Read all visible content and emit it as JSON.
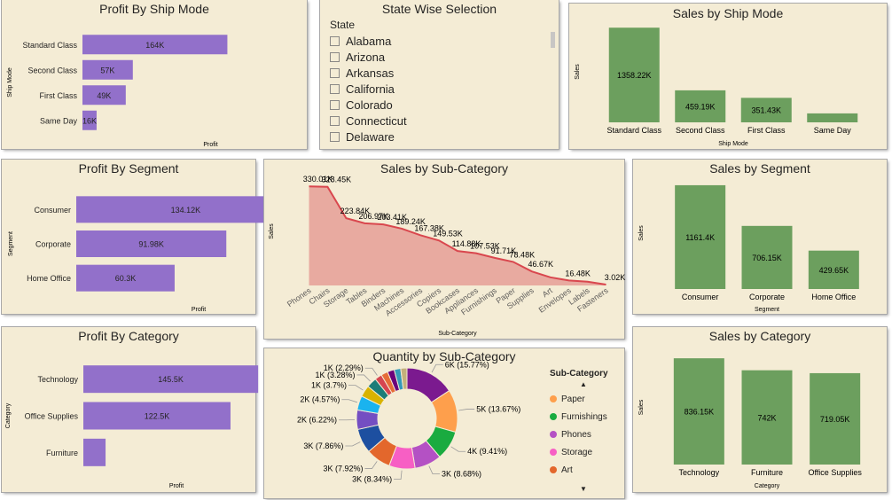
{
  "colors": {
    "profit_bar": "#9270ca",
    "sales_bar": "#6c9f5e",
    "area_fill": "#e8aaa0",
    "area_line": "#d9474e",
    "card_bg": "#f4ecd5"
  },
  "profit_ship": {
    "title": "Profit By Ship Mode",
    "xlabel": "Profit",
    "ylabel": "Ship Mode"
  },
  "state_slicer": {
    "title": "State Wise Selection",
    "header": "State",
    "states": [
      "Alabama",
      "Arizona",
      "Arkansas",
      "California",
      "Colorado",
      "Connecticut",
      "Delaware"
    ]
  },
  "sales_ship": {
    "title": "Sales by Ship Mode",
    "xlabel": "Ship Mode",
    "ylabel": "Sales"
  },
  "profit_segment": {
    "title": "Profit By Segment",
    "xlabel": "Profit",
    "ylabel": "Segment"
  },
  "sales_subcat": {
    "title": "Sales by Sub-Category",
    "xlabel": "Sub-Category",
    "ylabel": "Sales"
  },
  "sales_segment": {
    "title": "Sales by Segment",
    "xlabel": "Segment",
    "ylabel": "Sales"
  },
  "profit_category": {
    "title": "Profit By Category",
    "xlabel": "Profit",
    "ylabel": "Category"
  },
  "quantity_subcat": {
    "title": "Quantity by Sub-Category",
    "legend_title": "Sub-Category",
    "legend_items": [
      {
        "name": "Paper",
        "color": "#fe9f4c"
      },
      {
        "name": "Furnishings",
        "color": "#1aab40"
      },
      {
        "name": "Phones",
        "color": "#b451c4"
      },
      {
        "name": "Storage",
        "color": "#f75fc4"
      },
      {
        "name": "Art",
        "color": "#e3672c"
      }
    ]
  },
  "sales_category": {
    "title": "Sales by Category",
    "xlabel": "Category",
    "ylabel": "Sales"
  },
  "chart_data": [
    {
      "id": "profit_ship",
      "type": "bar",
      "orientation": "horizontal",
      "categories": [
        "Standard Class",
        "Second Class",
        "First Class",
        "Same Day"
      ],
      "values": [
        164,
        57,
        49,
        16
      ],
      "labels": [
        "164K",
        "57K",
        "49K",
        "16K"
      ],
      "xlim": [
        0,
        290
      ]
    },
    {
      "id": "sales_ship",
      "type": "bar",
      "categories": [
        "Standard Class",
        "Second Class",
        "First Class",
        "Same Day"
      ],
      "values": [
        1358.22,
        459.19,
        351.43,
        128.36
      ],
      "labels": [
        "1358.22K",
        "459.19K",
        "351.43K",
        ""
      ],
      "ylim": [
        0,
        1450
      ]
    },
    {
      "id": "profit_segment",
      "type": "bar",
      "orientation": "horizontal",
      "categories": [
        "Consumer",
        "Corporate",
        "Home Office"
      ],
      "values": [
        134.12,
        91.98,
        60.3
      ],
      "labels": [
        "134.12K",
        "91.98K",
        "60.3K"
      ],
      "xlim": [
        0,
        150
      ]
    },
    {
      "id": "sales_subcat",
      "type": "area",
      "categories": [
        "Phones",
        "Chairs",
        "Storage",
        "Tables",
        "Binders",
        "Machines",
        "Accessories",
        "Copiers",
        "Bookcases",
        "Appliances",
        "Furnishings",
        "Paper",
        "Supplies",
        "Art",
        "Envelopes",
        "Labels",
        "Fasteners"
      ],
      "values": [
        330.01,
        328.45,
        223.84,
        206.97,
        203.41,
        189.24,
        167.38,
        149.53,
        114.88,
        107.53,
        91.71,
        78.48,
        46.67,
        27.12,
        16.48,
        12.49,
        3.02
      ],
      "labels": [
        "330.01K",
        "328.45K",
        "223.84K",
        "206.97K",
        "203.41K",
        "189.24K",
        "167.38K",
        "149.53K",
        "114.88K",
        "107.53K",
        "91.71K",
        "78.48K",
        "46.67K",
        "",
        "16.48K",
        "",
        "3.02K"
      ],
      "ylim": [
        0,
        360
      ]
    },
    {
      "id": "sales_segment",
      "type": "bar",
      "categories": [
        "Consumer",
        "Corporate",
        "Home Office"
      ],
      "values": [
        1161.4,
        706.15,
        429.65
      ],
      "labels": [
        "1161.4K",
        "706.15K",
        "429.65K"
      ],
      "ylim": [
        0,
        1250
      ]
    },
    {
      "id": "profit_category",
      "type": "bar",
      "orientation": "horizontal",
      "categories": [
        "Technology",
        "Office Supplies",
        "Furniture"
      ],
      "values": [
        145.5,
        122.5,
        18.5
      ],
      "labels": [
        "145.5K",
        "122.5K",
        ""
      ],
      "xlim": [
        0,
        155
      ]
    },
    {
      "id": "quantity_subcat",
      "type": "pie",
      "style": "donut",
      "labels": [
        "6K (15.77%)",
        "5K (13.67%)",
        "4K (9.41%)",
        "3K (8.68%)",
        "3K (8.34%)",
        "3K (7.92%)",
        "3K (7.86%)",
        "2K (6.22%)",
        "2K (4.57%)",
        "1K (3.7%)",
        "1K (3.28%)",
        "1K (2.29%)",
        "",
        "",
        "",
        ""
      ],
      "values": [
        15.77,
        13.67,
        9.41,
        8.68,
        8.34,
        7.92,
        7.86,
        6.22,
        4.57,
        3.7,
        3.28,
        2.29,
        2.2,
        2.2,
        2.1,
        2.0
      ],
      "colors": [
        "#7b1a8f",
        "#fe9f4c",
        "#1aab40",
        "#b451c4",
        "#f75fc4",
        "#e3672c",
        "#1d4fa0",
        "#744ec2",
        "#1ab3ef",
        "#d9b300",
        "#1c7d78",
        "#d64550",
        "#e66c37",
        "#6b007b",
        "#3599b8",
        "#c4b07b"
      ]
    },
    {
      "id": "sales_category",
      "type": "bar",
      "categories": [
        "Technology",
        "Furniture",
        "Office Supplies"
      ],
      "values": [
        836.15,
        742,
        719.05
      ],
      "labels": [
        "836.15K",
        "742K",
        "719.05K"
      ],
      "ylim": [
        0,
        900
      ]
    }
  ]
}
